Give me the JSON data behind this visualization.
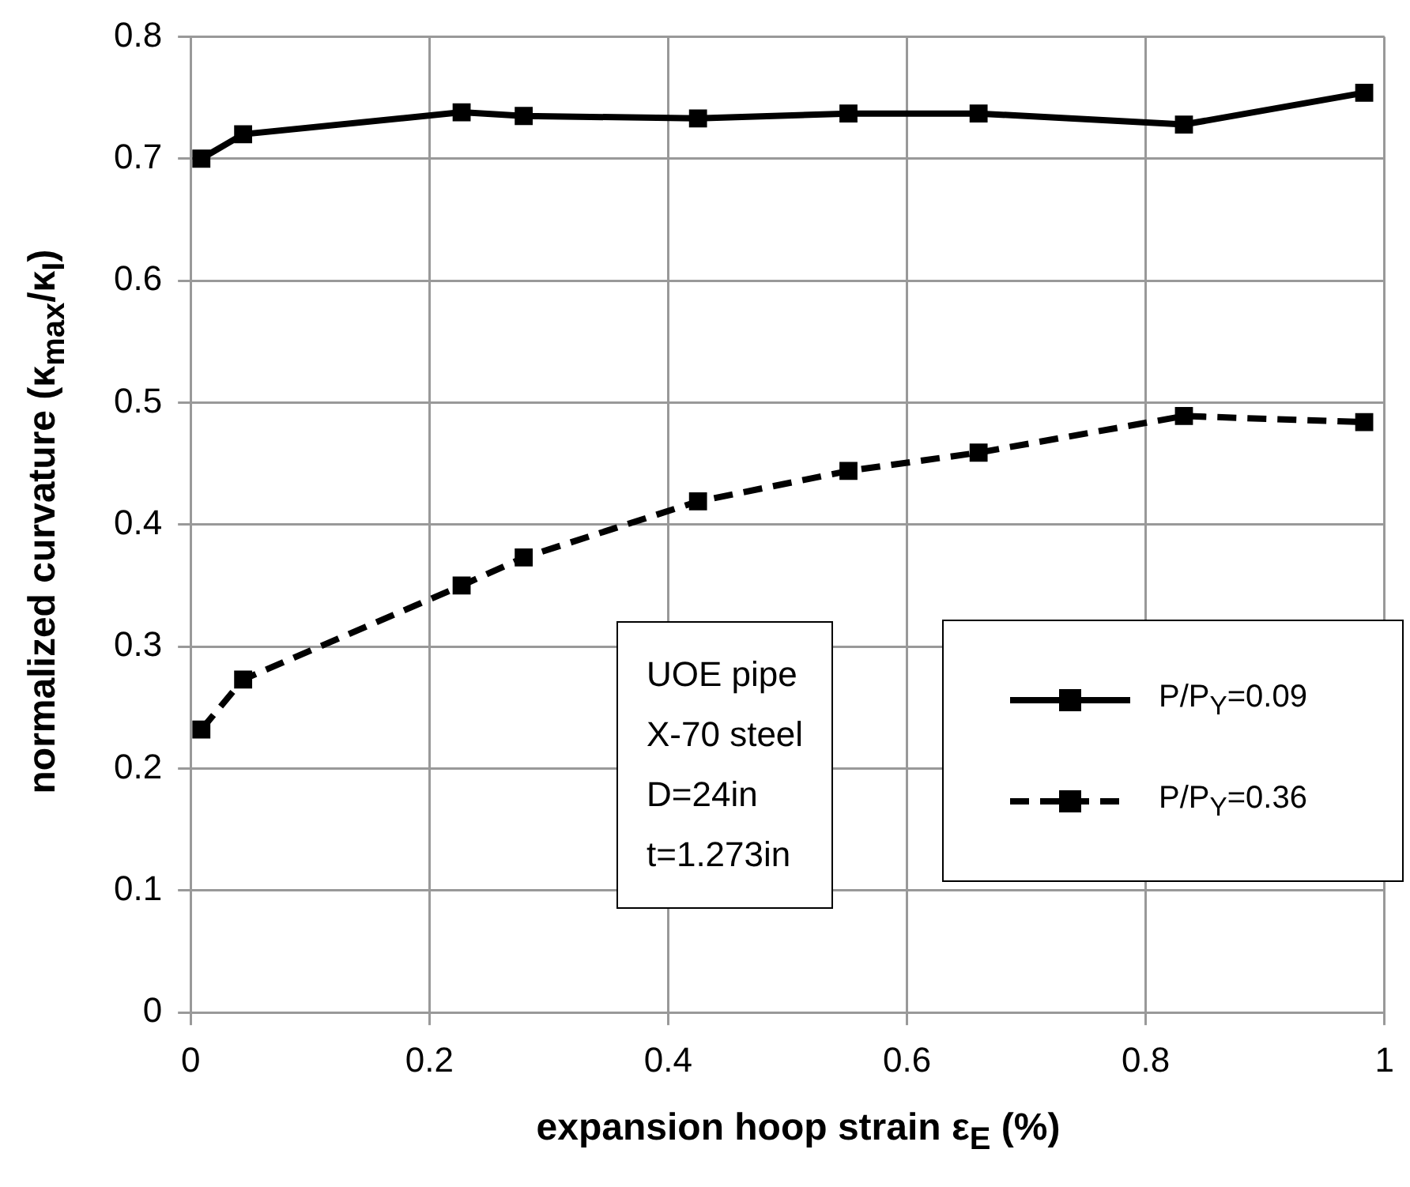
{
  "chart_data": {
    "type": "line",
    "xlabel": "expansion hoop strain ε$_{E}$ (%)",
    "ylabel": "normalized curvature (κ$_{max}$/κ$_{I}$)",
    "xlim": [
      0,
      1
    ],
    "xticks": [
      0,
      0.2,
      0.4,
      0.6,
      0.8,
      1
    ],
    "ylim": [
      0,
      0.8
    ],
    "yticks": [
      0,
      0.1,
      0.2,
      0.3,
      0.4,
      0.5,
      0.6,
      0.7,
      0.8
    ],
    "grid": true,
    "legend": "right",
    "marker": "square",
    "x": [
      0.009,
      0.044,
      0.227,
      0.279,
      0.425,
      0.551,
      0.66,
      0.832,
      0.983
    ],
    "series": [
      {
        "name": "P/P$_{Y}$=0.09",
        "color": "#000000",
        "line_style": "solid",
        "values": [
          0.7,
          0.72,
          0.738,
          0.735,
          0.733,
          0.737,
          0.737,
          0.728,
          0.754
        ]
      },
      {
        "name": "P/P$_{Y}$=0.36",
        "color": "#000000",
        "line_style": "dashed",
        "values": [
          0.232,
          0.273,
          0.35,
          0.373,
          0.419,
          0.444,
          0.459,
          0.489,
          0.484
        ]
      }
    ],
    "annotations": [
      "UOE pipe\nX-70 steel\nD=24in\nt=1.273in"
    ]
  }
}
